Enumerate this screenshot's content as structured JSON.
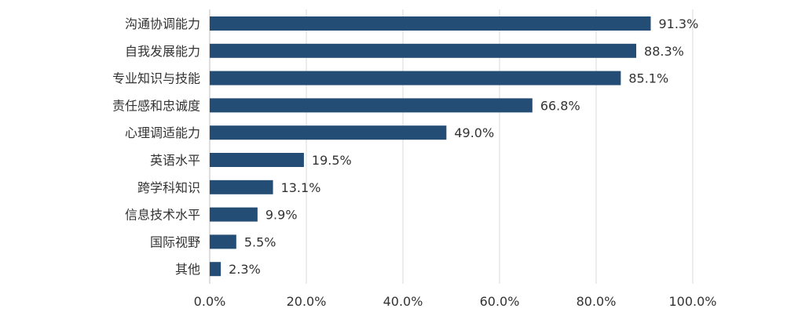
{
  "chart_data": {
    "type": "bar",
    "orientation": "horizontal",
    "title": "",
    "xlabel": "",
    "ylabel": "",
    "categories": [
      "沟通协调能力",
      "自我发展能力",
      "专业知识与技能",
      "责任感和忠诚度",
      "心理调适能力",
      "英语水平",
      "跨学科知识",
      "信息技术水平",
      "国际视野",
      "其他"
    ],
    "values": [
      91.3,
      88.3,
      85.1,
      66.8,
      49.0,
      19.5,
      13.1,
      9.9,
      5.5,
      2.3
    ],
    "value_labels": [
      "91.3%",
      "88.3%",
      "85.1%",
      "66.8%",
      "49.0%",
      "19.5%",
      "13.1%",
      "9.9%",
      "5.5%",
      "2.3%"
    ],
    "xlim": [
      0,
      100
    ],
    "xticks": [
      0,
      20,
      40,
      60,
      80,
      100
    ],
    "xtick_labels": [
      "0.0%",
      "20.0%",
      "40.0%",
      "60.0%",
      "80.0%",
      "100.0%"
    ],
    "grid": true,
    "legend": "none",
    "bar_color": "#234d75",
    "grid_color": "#d9d9d9"
  }
}
